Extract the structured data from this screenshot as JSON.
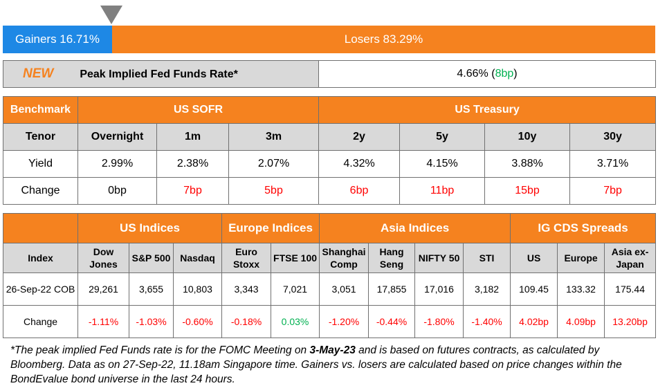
{
  "market_breadth": {
    "gainers_label": "Gainers 16.71%",
    "losers_label": "Losers 83.29%",
    "gainers_pct": 16.71,
    "losers_pct": 83.29
  },
  "peak_rate": {
    "new_label": "NEW",
    "label": "Peak Implied Fed Funds Rate*",
    "value": "4.66%",
    "change_open": " (",
    "change": "8bp",
    "change_close": ")"
  },
  "benchmark": {
    "header_benchmark": "Benchmark",
    "group_sofr": "US SOFR",
    "group_treasury": "US Treasury",
    "tenor_label": "Tenor",
    "tenors": [
      "Overnight",
      "1m",
      "3m",
      "2y",
      "5y",
      "10y",
      "30y"
    ],
    "yield_label": "Yield",
    "yields": [
      "2.99%",
      "2.38%",
      "2.07%",
      "4.32%",
      "4.15%",
      "3.88%",
      "3.71%"
    ],
    "change_label": "Change",
    "changes": [
      "0bp",
      "7bp",
      "5bp",
      "6bp",
      "11bp",
      "15bp",
      "7bp"
    ]
  },
  "indices": {
    "groups": [
      "US Indices",
      "Europe Indices",
      "Asia Indices",
      "IG CDS Spreads"
    ],
    "index_label": "Index",
    "names": [
      "Dow Jones",
      "S&P 500",
      "Nasdaq",
      "Euro Stoxx",
      "FTSE 100",
      "Shanghai Comp",
      "Hang Seng",
      "NIFTY 50",
      "STI",
      "US",
      "Europe",
      "Asia ex-Japan"
    ],
    "date_label": "26-Sep-22 COB",
    "values": [
      "29,261",
      "3,655",
      "10,803",
      "3,343",
      "7,021",
      "3,051",
      "17,855",
      "17,016",
      "3,182",
      "109.45",
      "133.32",
      "175.44"
    ],
    "change_label": "Change",
    "changes": [
      "-1.11%",
      "-1.03%",
      "-0.60%",
      "-0.18%",
      "0.03%",
      "-1.20%",
      "-0.44%",
      "-1.80%",
      "-1.40%",
      "4.02bp",
      "4.09bp",
      "13.20bp"
    ]
  },
  "footnote": {
    "part1": "*The peak implied Fed Funds rate is for the FOMC Meeting on ",
    "bold": "3-May-23",
    "part2": " and is based on futures contracts, as calculated by Bloomberg. Data as on 27-Sep-22, 11.18am Singapore time. Gainers vs. losers are calculated based on price changes within the BondEvalue bond universe in the last 24 hours."
  },
  "colors": {
    "orange": "#F5821F",
    "blue": "#1E88E5",
    "grey": "#D9D9D9",
    "red": "#FF0000",
    "green": "#00B050"
  }
}
